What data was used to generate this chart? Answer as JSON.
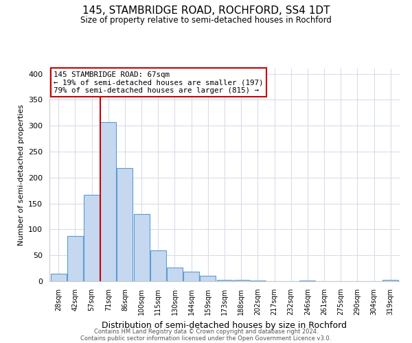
{
  "title": "145, STAMBRIDGE ROAD, ROCHFORD, SS4 1DT",
  "subtitle": "Size of property relative to semi-detached houses in Rochford",
  "xlabel": "Distribution of semi-detached houses by size in Rochford",
  "ylabel": "Number of semi-detached properties",
  "categories": [
    "28sqm",
    "42sqm",
    "57sqm",
    "71sqm",
    "86sqm",
    "100sqm",
    "115sqm",
    "130sqm",
    "144sqm",
    "159sqm",
    "173sqm",
    "188sqm",
    "202sqm",
    "217sqm",
    "232sqm",
    "246sqm",
    "261sqm",
    "275sqm",
    "290sqm",
    "304sqm",
    "319sqm"
  ],
  "values": [
    14,
    87,
    167,
    307,
    218,
    129,
    60,
    26,
    18,
    10,
    3,
    2,
    1,
    0,
    0,
    1,
    0,
    0,
    0,
    0,
    2
  ],
  "bar_color": "#c5d8f0",
  "bar_edge_color": "#5b9bd5",
  "vline_color": "#cc0000",
  "annotation_title": "145 STAMBRIDGE ROAD: 67sqm",
  "annotation_line1": "← 19% of semi-detached houses are smaller (197)",
  "annotation_line2": "79% of semi-detached houses are larger (815) →",
  "annotation_box_color": "#ffffff",
  "annotation_box_edge": "#cc0000",
  "ylim": [
    0,
    410
  ],
  "yticks": [
    0,
    50,
    100,
    150,
    200,
    250,
    300,
    350,
    400
  ],
  "footer1": "Contains HM Land Registry data © Crown copyright and database right 2024.",
  "footer2": "Contains public sector information licensed under the Open Government Licence v3.0.",
  "bg_color": "#ffffff",
  "grid_color": "#d8dce8"
}
